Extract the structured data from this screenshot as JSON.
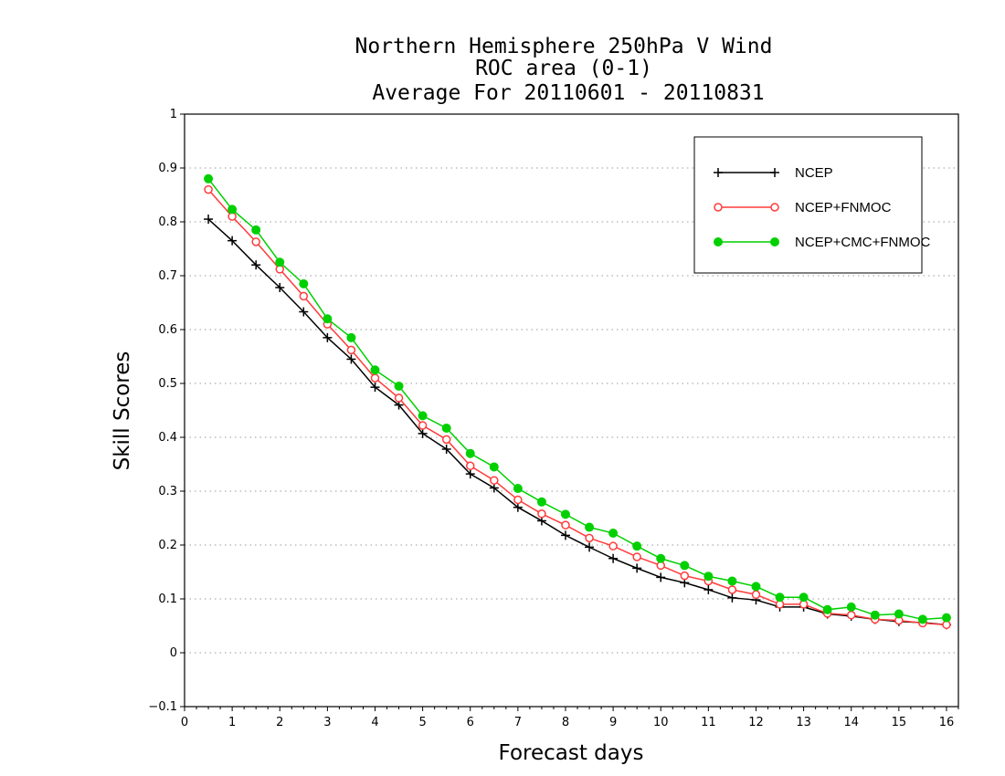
{
  "chart_data": {
    "type": "line",
    "title_lines": [
      "Northern Hemisphere 250hPa V Wind",
      "ROC area (0-1)",
      "Average For 20110601 - 20110831"
    ],
    "xlabel": "Forecast days",
    "ylabel": "Skill Scores",
    "xlim": [
      0,
      16.25
    ],
    "ylim": [
      -0.1,
      1
    ],
    "xticks": [
      0,
      1,
      2,
      3,
      4,
      5,
      6,
      7,
      8,
      9,
      10,
      11,
      12,
      13,
      14,
      15,
      16
    ],
    "xtick_labels": [
      "0",
      "1",
      "2",
      "3",
      "4",
      "5",
      "6",
      "7",
      "8",
      "9",
      "10",
      "11",
      "12",
      "13",
      "14",
      "15",
      "16"
    ],
    "yticks": [
      -0.1,
      0,
      0.1,
      0.2,
      0.3,
      0.4,
      0.5,
      0.6,
      0.7,
      0.8,
      0.9,
      1
    ],
    "ytick_labels": [
      "−0.1",
      "0",
      "0.1",
      "0.2",
      "0.3",
      "0.4",
      "0.5",
      "0.6",
      "0.7",
      "0.8",
      "0.9",
      "1"
    ],
    "grid": true,
    "legend_position": "top-right",
    "x": [
      0.5,
      1,
      1.5,
      2,
      2.5,
      3,
      3.5,
      4,
      4.5,
      5,
      5.5,
      6,
      6.5,
      7,
      7.5,
      8,
      8.5,
      9,
      9.5,
      10,
      10.5,
      11,
      11.5,
      12,
      12.5,
      13,
      13.5,
      14,
      14.5,
      15,
      15.5,
      16
    ],
    "series": [
      {
        "name": "NCEP",
        "color": "#000000",
        "marker": "plus",
        "values": [
          0.805,
          0.765,
          0.72,
          0.678,
          0.633,
          0.585,
          0.545,
          0.493,
          0.46,
          0.407,
          0.378,
          0.332,
          0.306,
          0.27,
          0.245,
          0.218,
          0.196,
          0.175,
          0.157,
          0.14,
          0.13,
          0.117,
          0.102,
          0.098,
          0.085,
          0.085,
          0.072,
          0.068,
          0.062,
          0.058,
          0.056,
          0.052
        ]
      },
      {
        "name": "NCEP+FNMOC",
        "color": "#ff3b3b",
        "marker": "open-circle",
        "values": [
          0.86,
          0.81,
          0.763,
          0.712,
          0.662,
          0.61,
          0.562,
          0.51,
          0.473,
          0.422,
          0.396,
          0.347,
          0.32,
          0.284,
          0.258,
          0.237,
          0.213,
          0.198,
          0.178,
          0.162,
          0.143,
          0.133,
          0.117,
          0.108,
          0.09,
          0.09,
          0.073,
          0.07,
          0.062,
          0.06,
          0.055,
          0.052
        ]
      },
      {
        "name": "NCEP+CMC+FNMOC",
        "color": "#00d000",
        "marker": "filled-circle",
        "values": [
          0.88,
          0.823,
          0.785,
          0.725,
          0.685,
          0.62,
          0.585,
          0.525,
          0.495,
          0.44,
          0.417,
          0.37,
          0.345,
          0.305,
          0.28,
          0.257,
          0.233,
          0.222,
          0.198,
          0.175,
          0.162,
          0.142,
          0.133,
          0.123,
          0.103,
          0.103,
          0.08,
          0.085,
          0.07,
          0.072,
          0.062,
          0.065
        ]
      }
    ]
  }
}
